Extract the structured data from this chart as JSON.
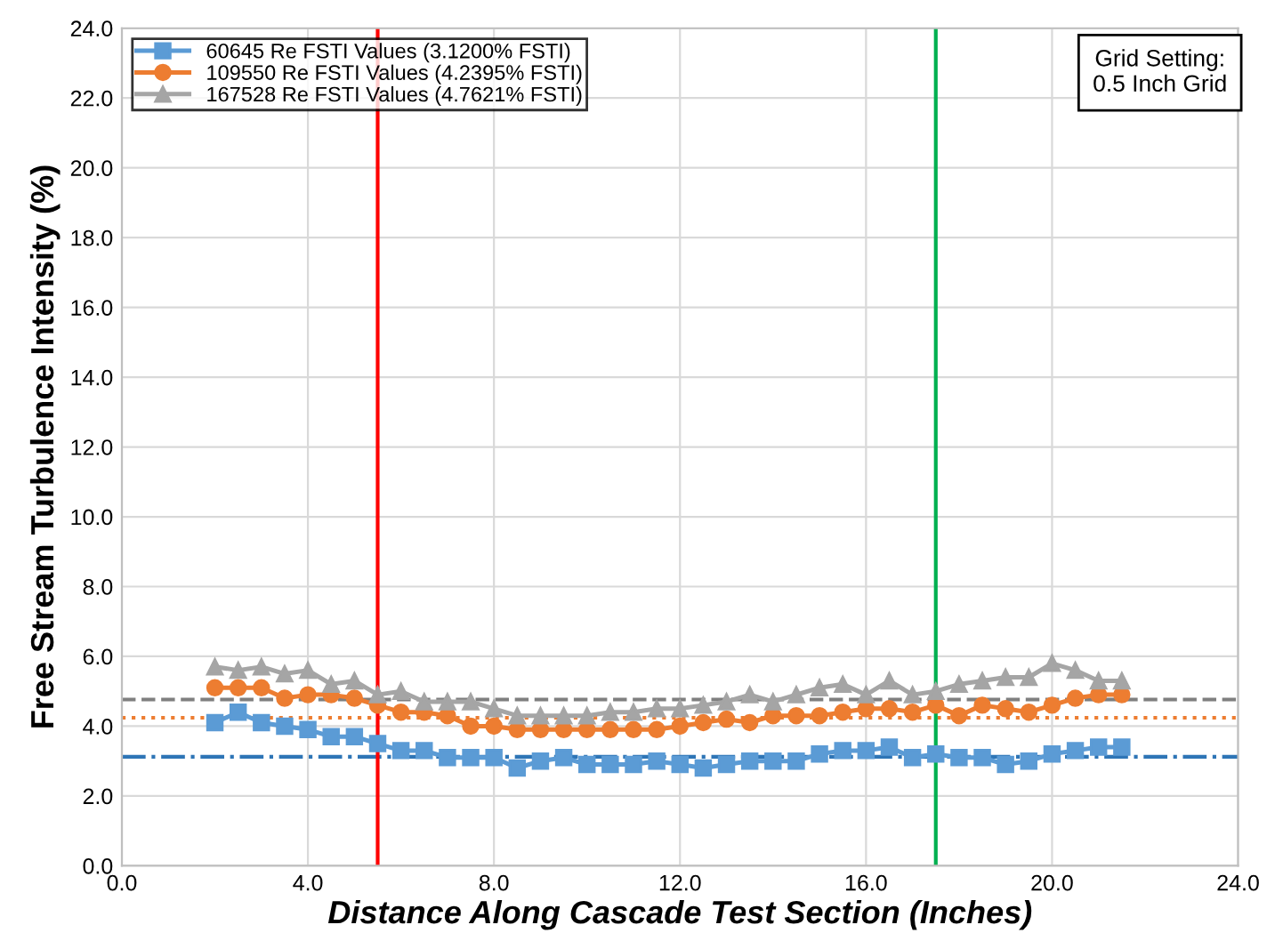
{
  "chart_data": {
    "type": "line",
    "xlabel": "Distance Along Cascade Test Section (Inches)",
    "ylabel": "Free Stream Turbulence Intensity (%)",
    "x": [
      2.0,
      2.5,
      3.0,
      3.5,
      4.0,
      4.5,
      5.0,
      5.5,
      6.0,
      6.5,
      7.0,
      7.5,
      8.0,
      8.5,
      9.0,
      9.5,
      10.0,
      10.5,
      11.0,
      11.5,
      12.0,
      12.5,
      13.0,
      13.5,
      14.0,
      14.5,
      15.0,
      15.5,
      16.0,
      16.5,
      17.0,
      17.5,
      18.0,
      18.5,
      19.0,
      19.5,
      20.0,
      20.5,
      21.0,
      21.5
    ],
    "series": [
      {
        "name": "60645 Re FSTI Values (3.1200% FSTI)",
        "color": "#5b9bd5",
        "marker": "square",
        "values": [
          4.1,
          4.4,
          4.1,
          4.0,
          3.9,
          3.7,
          3.7,
          3.5,
          3.3,
          3.3,
          3.1,
          3.1,
          3.1,
          2.8,
          3.0,
          3.1,
          2.9,
          2.9,
          2.9,
          3.0,
          2.9,
          2.8,
          2.9,
          3.0,
          3.0,
          3.0,
          3.2,
          3.3,
          3.3,
          3.4,
          3.1,
          3.2,
          3.1,
          3.1,
          2.9,
          3.0,
          3.2,
          3.3,
          3.4,
          3.4
        ]
      },
      {
        "name": "109550 Re FSTI Values (4.2395% FSTI)",
        "color": "#ed7d31",
        "marker": "circle",
        "values": [
          5.1,
          5.1,
          5.1,
          4.8,
          4.9,
          4.9,
          4.8,
          4.6,
          4.4,
          4.4,
          4.3,
          4.0,
          4.0,
          3.9,
          3.9,
          3.9,
          3.9,
          3.9,
          3.9,
          3.9,
          4.0,
          4.1,
          4.2,
          4.1,
          4.3,
          4.3,
          4.3,
          4.4,
          4.5,
          4.5,
          4.4,
          4.6,
          4.3,
          4.6,
          4.5,
          4.4,
          4.6,
          4.8,
          4.9,
          4.9
        ]
      },
      {
        "name": "167528 Re FSTI Values (4.7621% FSTI)",
        "color": "#a5a5a5",
        "marker": "triangle",
        "values": [
          5.7,
          5.6,
          5.7,
          5.5,
          5.6,
          5.2,
          5.3,
          4.9,
          5.0,
          4.7,
          4.7,
          4.7,
          4.5,
          4.3,
          4.3,
          4.3,
          4.3,
          4.4,
          4.4,
          4.5,
          4.5,
          4.6,
          4.7,
          4.9,
          4.7,
          4.9,
          5.1,
          5.2,
          4.9,
          5.3,
          4.9,
          5.0,
          5.2,
          5.3,
          5.4,
          5.4,
          5.8,
          5.6,
          5.3,
          5.3
        ]
      }
    ],
    "xlim": [
      0,
      24
    ],
    "xticks": [
      {
        "value": 0,
        "label": "0.0"
      },
      {
        "value": 4,
        "label": "4.0"
      },
      {
        "value": 8,
        "label": "8.0"
      },
      {
        "value": 12,
        "label": "12.0"
      },
      {
        "value": 16,
        "label": "16.0"
      },
      {
        "value": 20,
        "label": "20.0"
      },
      {
        "value": 24,
        "label": "24.0"
      }
    ],
    "ylim": [
      0,
      24
    ],
    "yticks": [
      {
        "value": 0,
        "label": "0.0"
      },
      {
        "value": 2,
        "label": "2.0"
      },
      {
        "value": 4,
        "label": "4.0"
      },
      {
        "value": 6,
        "label": "6.0"
      },
      {
        "value": 8,
        "label": "8.0"
      },
      {
        "value": 10,
        "label": "10.0"
      },
      {
        "value": 12,
        "label": "12.0"
      },
      {
        "value": 14,
        "label": "14.0"
      },
      {
        "value": 16,
        "label": "16.0"
      },
      {
        "value": 18,
        "label": "18.0"
      },
      {
        "value": 20,
        "label": "20.0"
      },
      {
        "value": 22,
        "label": "22.0"
      },
      {
        "value": 24,
        "label": "24.0"
      }
    ],
    "ref_lines": [
      {
        "axis": "y",
        "value": 3.12,
        "color": "#2e75b6",
        "line_style": "dashdot"
      },
      {
        "axis": "y",
        "value": 4.2395,
        "color": "#ed7d31",
        "line_style": "dotted"
      },
      {
        "axis": "y",
        "value": 4.7621,
        "color": "#7f7f7f",
        "line_style": "dashed"
      },
      {
        "axis": "x",
        "value": 5.5,
        "color": "#ff0000",
        "line_style": "solid"
      },
      {
        "axis": "x",
        "value": 17.5,
        "color": "#00b050",
        "line_style": "solid"
      }
    ],
    "annotations": [
      "Grid Setting:\n0.5 Inch Grid"
    ],
    "grid": true,
    "legend": "top left"
  }
}
